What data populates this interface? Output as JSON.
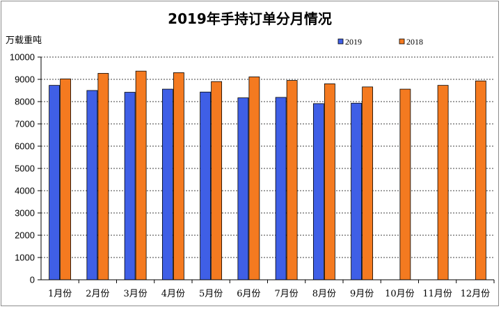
{
  "chart_data": {
    "type": "bar",
    "title": "2019年手持订单分月情况",
    "ylabel": "万载重吨",
    "xlabel": "",
    "ylim": [
      0,
      10000
    ],
    "yticks": [
      0,
      1000,
      2000,
      3000,
      4000,
      5000,
      6000,
      7000,
      8000,
      9000,
      10000
    ],
    "grid": true,
    "legend_position": "top-right",
    "categories": [
      "1月份",
      "2月份",
      "3月份",
      "4月份",
      "5月份",
      "6月份",
      "7月份",
      "8月份",
      "9月份",
      "10月份",
      "11月份",
      "12月份"
    ],
    "series": [
      {
        "name": "2019",
        "color": "#3f5fe6",
        "values": [
          8730,
          8500,
          8420,
          8560,
          8430,
          8170,
          8190,
          7910,
          7930,
          null,
          null,
          null
        ]
      },
      {
        "name": "2018",
        "color": "#f47a20",
        "values": [
          9020,
          9270,
          9370,
          9300,
          8900,
          9110,
          8950,
          8800,
          8660,
          8560,
          8730,
          8930
        ]
      }
    ]
  }
}
